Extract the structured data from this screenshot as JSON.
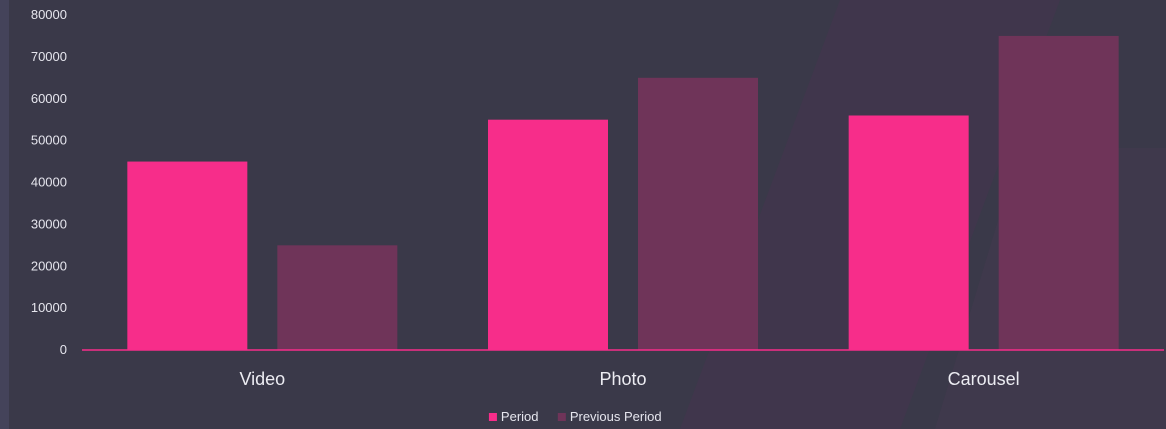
{
  "chart_data": {
    "type": "bar",
    "categories": [
      "Video",
      "Photo",
      "Carousel"
    ],
    "series": [
      {
        "name": "Period",
        "values": [
          45000,
          55000,
          56000
        ],
        "color": "#f72d8a"
      },
      {
        "name": "Previous Period",
        "values": [
          25000,
          65000,
          75000
        ],
        "color": "#6f3459"
      }
    ],
    "ylim": [
      0,
      80000
    ],
    "yticks": [
      "0",
      "10000",
      "20000",
      "30000",
      "40000",
      "50000",
      "60000",
      "70000",
      "80000"
    ],
    "grid": false,
    "legend": "bottom-center",
    "axis_color": "#f72d8a",
    "background_color": "#3a3949",
    "title": "",
    "xlabel": "",
    "ylabel": ""
  }
}
